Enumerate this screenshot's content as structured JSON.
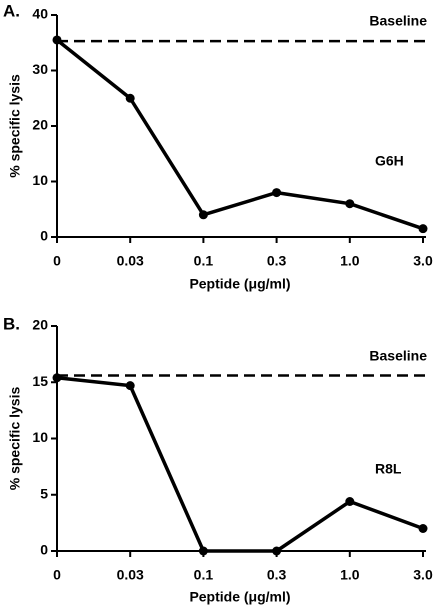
{
  "chart_data": [
    {
      "type": "line",
      "panel_label": "A.",
      "x_label": "Peptide (μg/ml)",
      "y_label": "% specific lysis",
      "categories": [
        "0",
        "0.03",
        "0.1",
        "0.3",
        "1.0",
        "3.0"
      ],
      "values": [
        35.5,
        25,
        4,
        8,
        6,
        1.5
      ],
      "color": "#000000",
      "ylim": [
        0,
        40
      ],
      "yticks": [
        0,
        10,
        20,
        30,
        40
      ],
      "baseline": 35.3,
      "baseline_label": "Baseline",
      "annotation": "G6H"
    },
    {
      "type": "line",
      "panel_label": "B.",
      "x_label": "Peptide (μg/ml)",
      "y_label": "% specific lysis",
      "categories": [
        "0",
        "0.03",
        "0.1",
        "0.3",
        "1.0",
        "3.0"
      ],
      "values": [
        15.4,
        14.7,
        0,
        0,
        4.4,
        2
      ],
      "color": "#000000",
      "ylim": [
        0,
        20
      ],
      "yticks": [
        0,
        5,
        10,
        15,
        20
      ],
      "baseline": 15.6,
      "baseline_label": "Baseline",
      "annotation": "R8L"
    }
  ]
}
